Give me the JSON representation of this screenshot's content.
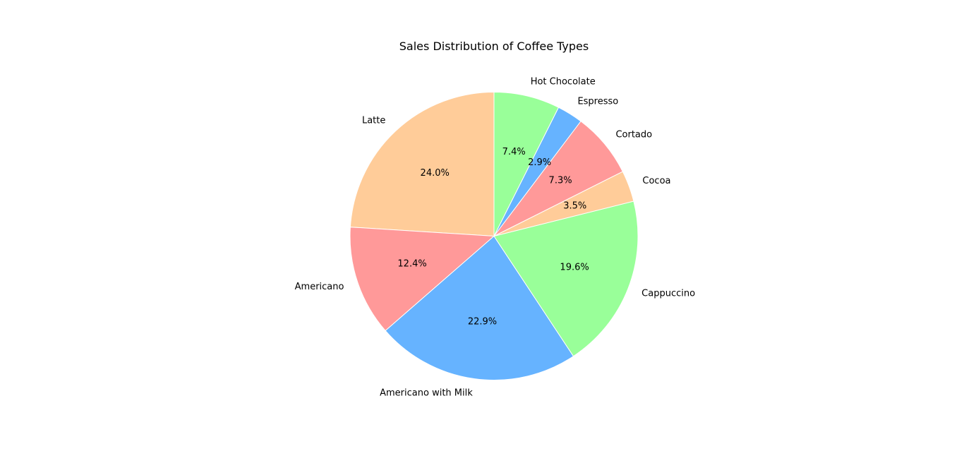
{
  "chart_data": {
    "type": "pie",
    "title": "Sales Distribution of Coffee Types",
    "start_angle": 90,
    "direction": "counterclockwise",
    "slices": [
      {
        "label": "Latte",
        "value": 24.0,
        "pct_label": "24.0%",
        "color": "#ffcc99"
      },
      {
        "label": "Americano",
        "value": 12.4,
        "pct_label": "12.4%",
        "color": "#ff9999"
      },
      {
        "label": "Americano with Milk",
        "value": 22.9,
        "pct_label": "22.9%",
        "color": "#66b3ff"
      },
      {
        "label": "Cappuccino",
        "value": 19.6,
        "pct_label": "19.6%",
        "color": "#99ff99"
      },
      {
        "label": "Cocoa",
        "value": 3.5,
        "pct_label": "3.5%",
        "color": "#ffcc99"
      },
      {
        "label": "Cortado",
        "value": 7.3,
        "pct_label": "7.3%",
        "color": "#ff9999"
      },
      {
        "label": "Espresso",
        "value": 2.9,
        "pct_label": "2.9%",
        "color": "#66b3ff"
      },
      {
        "label": "Hot Chocolate",
        "value": 7.4,
        "pct_label": "7.4%",
        "color": "#99ff99"
      }
    ]
  }
}
